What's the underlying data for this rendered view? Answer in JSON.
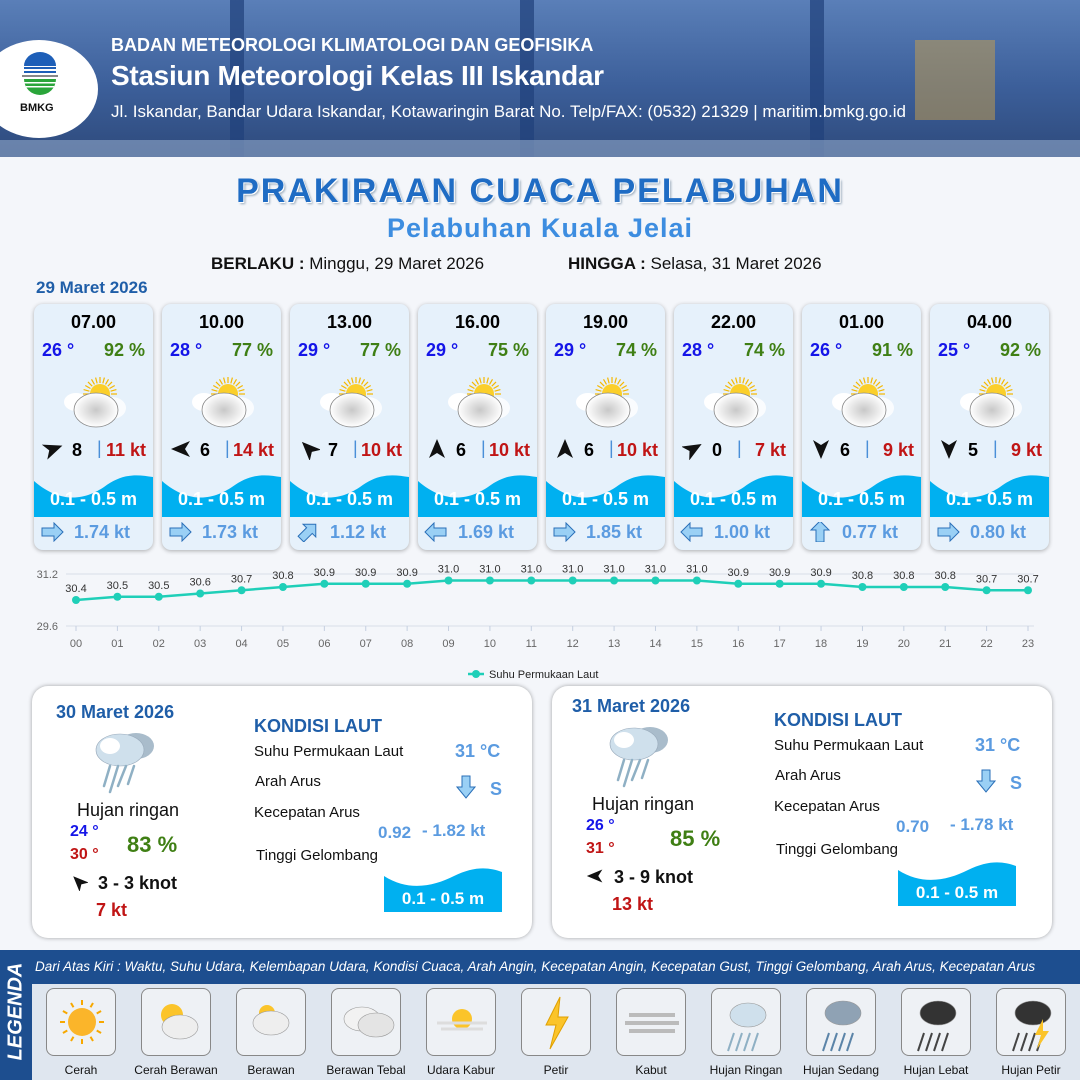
{
  "header": {
    "logo_text": "BMKG",
    "agency": "BADAN METEOROLOGI KLIMATOLOGI DAN GEOFISIKA",
    "station": "Stasiun Meteorologi Kelas III Iskandar",
    "address": "Jl. Iskandar, Bandar Udara Iskandar, Kotawaringin Barat No. Telp/FAX: (0532) 21329 | maritim.bmkg.go.id"
  },
  "title": "PRAKIRAAN CUACA PELABUHAN",
  "subtitle": "Pelabuhan Kuala Jelai",
  "validity": {
    "from_label": "BERLAKU :",
    "from": "Minggu, 29 Maret 2026",
    "to_label": "HINGGA :",
    "to": "Selasa, 31 Maret 2026"
  },
  "day1": {
    "date": "29 Maret 2026",
    "cards": [
      {
        "time": "07.00",
        "temp": "26 °",
        "hum": "92 %",
        "weather_icon": "cerah-berawan",
        "wind_dir_deg": 70,
        "wind": "8",
        "gust": "11 kt",
        "wave": "0.1 - 0.5 m",
        "current_dir_deg": 90,
        "current": "1.74 kt"
      },
      {
        "time": "10.00",
        "temp": "28 °",
        "hum": "77 %",
        "weather_icon": "cerah-berawan",
        "wind_dir_deg": 270,
        "wind": "6",
        "gust": "14 kt",
        "wave": "0.1 - 0.5 m",
        "current_dir_deg": 90,
        "current": "1.73 kt"
      },
      {
        "time": "13.00",
        "temp": "29 °",
        "hum": "77 %",
        "weather_icon": "cerah-berawan",
        "wind_dir_deg": 315,
        "wind": "7",
        "gust": "10 kt",
        "wave": "0.1 - 0.5 m",
        "current_dir_deg": 45,
        "current": "1.12 kt"
      },
      {
        "time": "16.00",
        "temp": "29 °",
        "hum": "75 %",
        "weather_icon": "cerah-berawan",
        "wind_dir_deg": 0,
        "wind": "6",
        "gust": "10 kt",
        "wave": "0.1 - 0.5 m",
        "current_dir_deg": 270,
        "current": "1.69 kt"
      },
      {
        "time": "19.00",
        "temp": "29 °",
        "hum": "74 %",
        "weather_icon": "cerah-berawan",
        "wind_dir_deg": 0,
        "wind": "6",
        "gust": "10 kt",
        "wave": "0.1 - 0.5 m",
        "current_dir_deg": 90,
        "current": "1.85 kt"
      },
      {
        "time": "22.00",
        "temp": "28 °",
        "hum": "74 %",
        "weather_icon": "cerah-berawan",
        "wind_dir_deg": 60,
        "wind": "0",
        "gust": "7 kt",
        "wave": "0.1 - 0.5 m",
        "current_dir_deg": 270,
        "current": "1.00 kt"
      },
      {
        "time": "01.00",
        "temp": "26 °",
        "hum": "91 %",
        "weather_icon": "cerah-berawan",
        "wind_dir_deg": 180,
        "wind": "6",
        "gust": "9 kt",
        "wave": "0.1 - 0.5 m",
        "current_dir_deg": 0,
        "current": "0.77 kt"
      },
      {
        "time": "04.00",
        "temp": "25 °",
        "hum": "92 %",
        "weather_icon": "cerah-berawan",
        "wind_dir_deg": 180,
        "wind": "5",
        "gust": "9 kt",
        "wave": "0.1 - 0.5 m",
        "current_dir_deg": 90,
        "current": "0.80 kt"
      }
    ]
  },
  "chart_data": {
    "type": "line",
    "x": [
      "00",
      "01",
      "02",
      "03",
      "04",
      "05",
      "06",
      "07",
      "08",
      "09",
      "10",
      "11",
      "12",
      "13",
      "14",
      "15",
      "16",
      "17",
      "18",
      "19",
      "20",
      "21",
      "22",
      "23"
    ],
    "series": [
      {
        "name": "Suhu Permukaan Laut",
        "values": [
          30.4,
          30.5,
          30.5,
          30.6,
          30.7,
          30.8,
          30.9,
          30.9,
          30.9,
          31.0,
          31.0,
          31.0,
          31.0,
          31.0,
          31.0,
          31.0,
          30.9,
          30.9,
          30.9,
          30.8,
          30.8,
          30.8,
          30.7,
          30.7
        ],
        "color": "#1fcfb8"
      }
    ],
    "ylim": [
      29.6,
      31.2
    ],
    "yticks": [
      "31.2",
      "29.6"
    ],
    "grid": true,
    "legend": "bottom-center"
  },
  "days": [
    {
      "date": "30 Maret 2026",
      "weather": "Hujan ringan",
      "weather_icon": "hujan-ringan",
      "tmin": "24 °",
      "tmax": "30 °",
      "hum": "83 %",
      "wind_dir_deg": 315,
      "wind": "3  - 3 knot",
      "gust": "7 kt",
      "sea": {
        "heading": "KONDISI LAUT",
        "sst_label": "Suhu Permukaan Laut",
        "sst": "31 °C",
        "dir_label": "Arah Arus",
        "current_dir": "S",
        "speed_label": "Kecepatan Arus",
        "speed_min": "0.92",
        "speed_max": "- 1.82 kt",
        "wave_label": "Tinggi Gelombang",
        "wave": "0.1 - 0.5 m"
      }
    },
    {
      "date": "31 Maret 2026",
      "weather": "Hujan ringan",
      "weather_icon": "hujan-ringan",
      "tmin": "26 °",
      "tmax": "31 °",
      "hum": "85 %",
      "wind_dir_deg": 270,
      "wind": "3  - 9 knot",
      "gust": "13 kt",
      "sea": {
        "heading": "KONDISI LAUT",
        "sst_label": "Suhu Permukaan Laut",
        "sst": "31 °C",
        "dir_label": "Arah Arus",
        "current_dir": "S",
        "speed_label": "Kecepatan Arus",
        "speed_min": "0.70",
        "speed_max": "- 1.78 kt",
        "wave_label": "Tinggi Gelombang",
        "wave": "0.1 - 0.5 m"
      }
    }
  ],
  "legend": {
    "side_label": "LEGENDA",
    "description": "Dari Atas Kiri : Waktu, Suhu Udara, Kelembapan Udara, Kondisi Cuaca, Arah Angin, Kecepatan Angin, Kecepatan Gust, Tinggi Gelombang, Arah Arus, Kecepatan Arus",
    "items": [
      {
        "label": "Cerah",
        "icon": "sun"
      },
      {
        "label": "Cerah Berawan",
        "icon": "sun-cloud"
      },
      {
        "label": "Berawan",
        "icon": "cloud-sun-small"
      },
      {
        "label": "Berawan Tebal",
        "icon": "clouds"
      },
      {
        "label": "Udara Kabur",
        "icon": "haze"
      },
      {
        "label": "Petir",
        "icon": "lightning"
      },
      {
        "label": "Kabut",
        "icon": "fog"
      },
      {
        "label": "Hujan Ringan",
        "icon": "light-rain"
      },
      {
        "label": "Hujan Sedang",
        "icon": "moderate-rain"
      },
      {
        "label": "Hujan Lebat",
        "icon": "heavy-rain"
      },
      {
        "label": "Hujan Petir",
        "icon": "thunderstorm"
      }
    ]
  }
}
